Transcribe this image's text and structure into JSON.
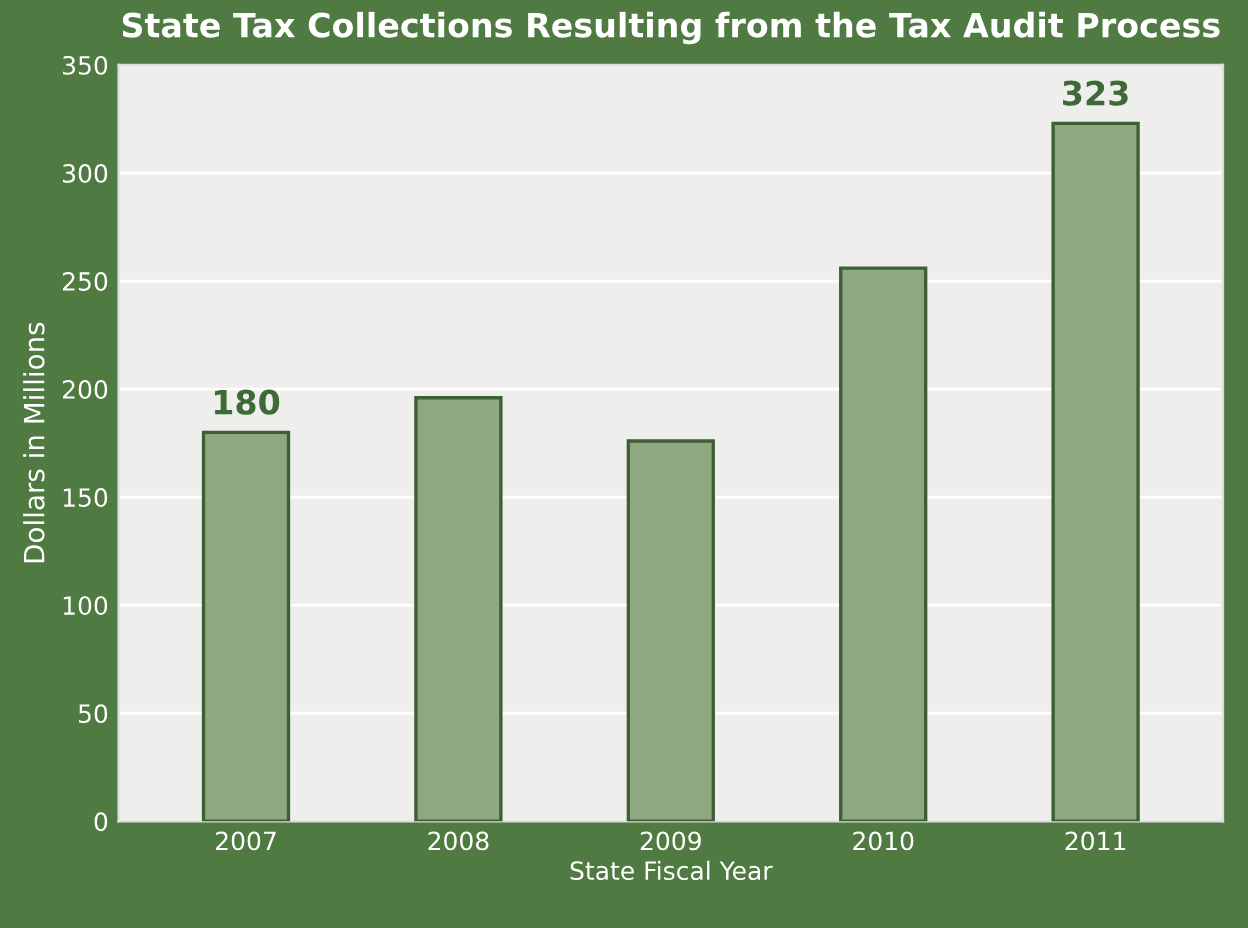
{
  "chart_data": {
    "type": "bar",
    "title": "State Tax Collections Resulting from the Tax Audit Process",
    "xlabel": "State Fiscal Year",
    "ylabel": "Dollars in Millions",
    "categories": [
      "2007",
      "2008",
      "2009",
      "2010",
      "2011"
    ],
    "values": [
      180,
      196,
      176,
      256,
      323
    ],
    "value_labels": [
      "180",
      null,
      null,
      null,
      "323"
    ],
    "color": "#8fa882",
    "ylim": [
      0,
      350
    ],
    "yticks": [
      0,
      50,
      100,
      150,
      200,
      250,
      300,
      350
    ],
    "grid": "y"
  }
}
